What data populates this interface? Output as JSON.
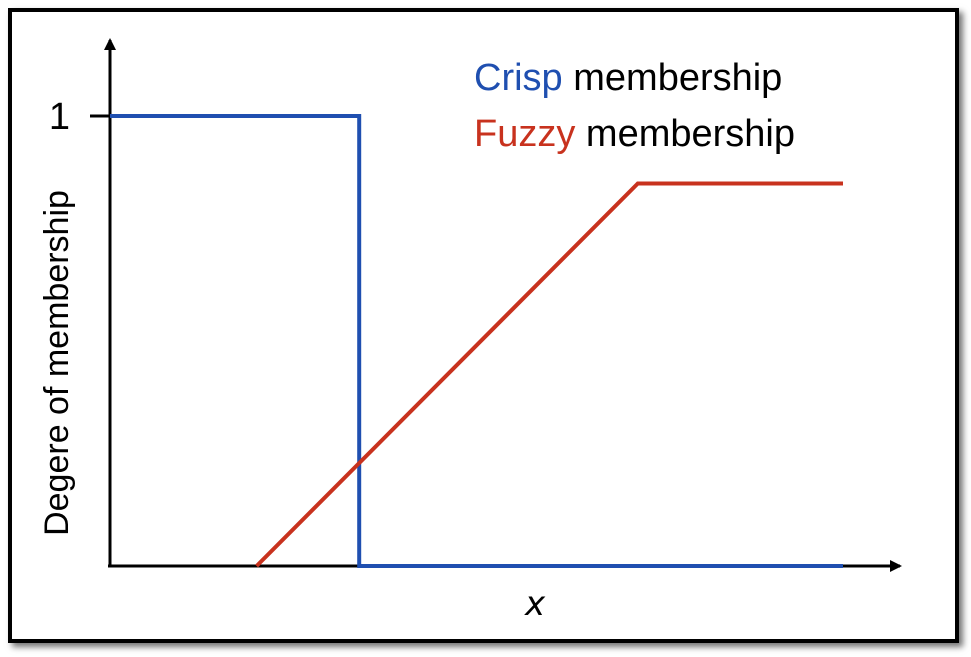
{
  "chart_data": {
    "type": "line",
    "xlabel": "x",
    "ylabel": "Degere of membership",
    "y_ticks": [
      "1"
    ],
    "ylim": [
      0,
      1
    ],
    "grid": false,
    "legend_placement": "top-right",
    "series": [
      {
        "name": "Crisp",
        "legend_suffix": " membership",
        "color": "#1f4fb0",
        "points": [
          [
            0,
            1
          ],
          [
            0.34,
            1
          ],
          [
            0.34,
            0
          ],
          [
            1,
            0
          ]
        ]
      },
      {
        "name": "Fuzzy",
        "legend_suffix": " membership",
        "color": "#c8321e",
        "points": [
          [
            0.2,
            0
          ],
          [
            0.72,
            0.85
          ],
          [
            1,
            0.85
          ]
        ]
      }
    ]
  }
}
